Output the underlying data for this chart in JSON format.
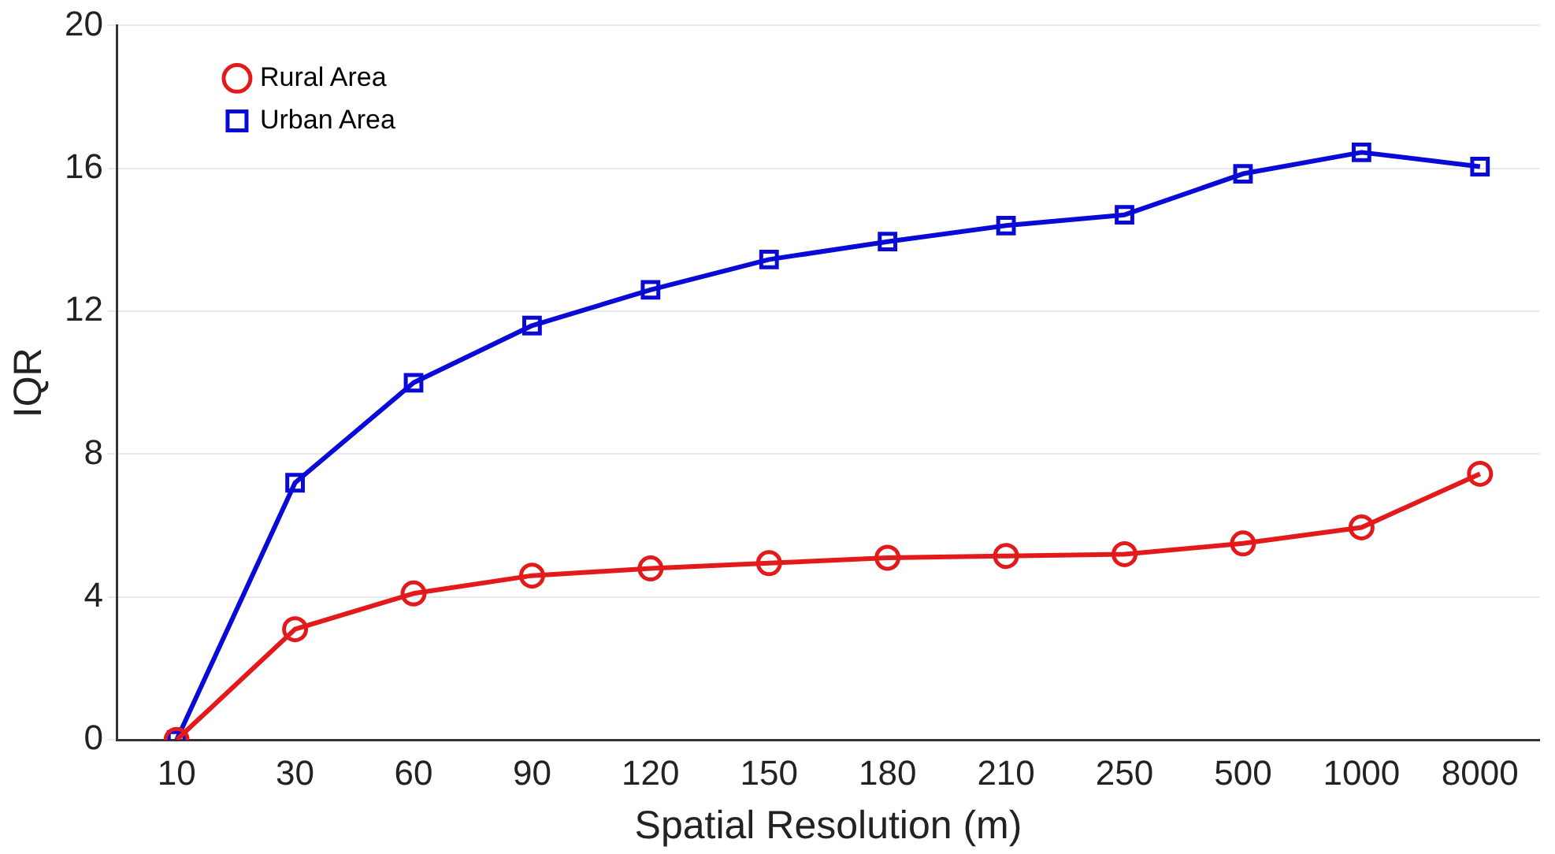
{
  "chart_data": {
    "type": "line",
    "xlabel": "Spatial Resolution (m)",
    "ylabel": "IQR",
    "categories": [
      "10",
      "30",
      "60",
      "90",
      "120",
      "150",
      "180",
      "210",
      "250",
      "500",
      "1000",
      "8000"
    ],
    "series": [
      {
        "name": "Rural Area",
        "color": "#e31a1c",
        "marker": "circle",
        "values": [
          0,
          3.1,
          4.1,
          4.6,
          4.8,
          4.95,
          5.1,
          5.15,
          5.2,
          5.5,
          5.95,
          7.45
        ]
      },
      {
        "name": "Urban Area",
        "color": "#0a0ad6",
        "marker": "square",
        "values": [
          0,
          7.2,
          10.0,
          11.6,
          12.6,
          13.45,
          13.95,
          14.4,
          14.7,
          15.85,
          16.45,
          16.05
        ]
      }
    ],
    "ylim": [
      0,
      20
    ],
    "yticks": [
      0,
      4,
      8,
      12,
      16,
      20
    ],
    "grid": "y",
    "legend": "top left",
    "line_style": "solid"
  }
}
